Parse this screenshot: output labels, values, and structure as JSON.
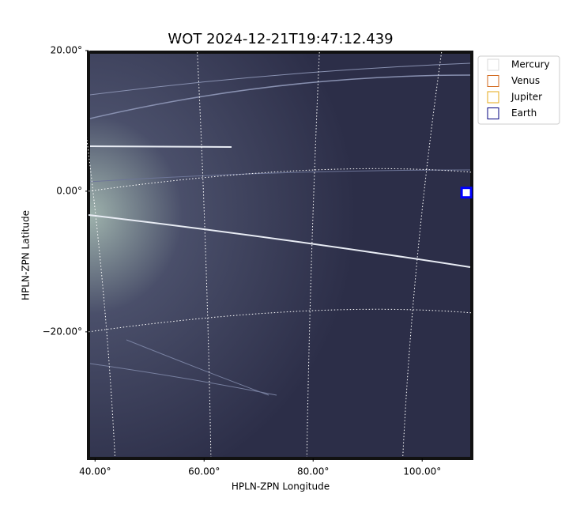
{
  "chart_data": {
    "type": "image",
    "title": "WOT 2024-12-21T19:47:12.439",
    "x_label": "HPLN-ZPN Longitude",
    "y_label": "HPLN-ZPN Latitude",
    "xlim": [
      38.8,
      109.1
    ],
    "ylim": [
      -38,
      20
    ],
    "xticks": [
      {
        "value": 40,
        "label": "40.00°"
      },
      {
        "value": 60,
        "label": "60.00°"
      },
      {
        "value": 80,
        "label": "80.00°"
      },
      {
        "value": 100,
        "label": "100.00°"
      }
    ],
    "yticks": [
      {
        "value": 20,
        "label": "20.00°"
      },
      {
        "value": 0,
        "label": "0.00°"
      },
      {
        "value": -20,
        "label": "−20.00°"
      }
    ],
    "grid": true,
    "legend": "upper right",
    "series": [
      {
        "name": "Mercury",
        "color": "#d9d9d9"
      },
      {
        "name": "Venus",
        "color": "#d2691e"
      },
      {
        "name": "Jupiter",
        "color": "#e6a817"
      },
      {
        "name": "Earth",
        "color": "#00007f",
        "x": [
          108.1
        ],
        "y": [
          -0.2
        ]
      }
    ]
  }
}
